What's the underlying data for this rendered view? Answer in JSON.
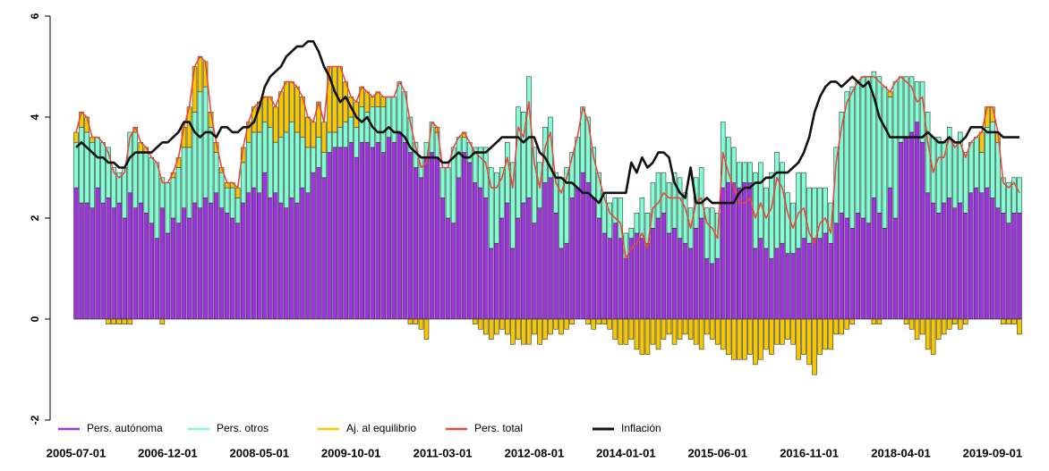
{
  "chart_data": {
    "type": "stacked_bar_line",
    "categories": [
      "2005-07-01",
      null,
      null,
      null,
      null,
      null,
      null,
      null,
      null,
      null,
      null,
      null,
      null,
      null,
      null,
      null,
      null,
      "2006-12-01",
      null,
      null,
      null,
      null,
      null,
      null,
      null,
      null,
      null,
      null,
      null,
      null,
      null,
      null,
      null,
      null,
      "2008-05-01",
      null,
      null,
      null,
      null,
      null,
      null,
      null,
      null,
      null,
      null,
      null,
      null,
      null,
      null,
      null,
      null,
      "2009-10-01",
      null,
      null,
      null,
      null,
      null,
      null,
      null,
      null,
      null,
      null,
      null,
      null,
      null,
      null,
      null,
      null,
      "2011-03-01",
      null,
      null,
      null,
      null,
      null,
      null,
      null,
      null,
      null,
      null,
      null,
      null,
      null,
      null,
      null,
      null,
      "2012-08-01",
      null,
      null,
      null,
      null,
      null,
      null,
      null,
      null,
      null,
      null,
      null,
      null,
      null,
      null,
      null,
      null,
      "2014-01-01",
      null,
      null,
      null,
      null,
      null,
      null,
      null,
      null,
      null,
      null,
      null,
      null,
      null,
      null,
      null,
      null,
      "2015-06-01",
      null,
      null,
      null,
      null,
      null,
      null,
      null,
      null,
      null,
      null,
      null,
      null,
      null,
      null,
      null,
      null,
      "2016-11-01",
      null,
      null,
      null,
      null,
      null,
      null,
      null,
      null,
      null,
      null,
      null,
      null,
      null,
      null,
      null,
      null,
      "2018-04-01",
      null,
      null,
      null,
      null,
      null,
      null,
      null,
      null,
      null,
      null,
      null,
      null,
      null,
      null,
      null,
      null,
      "2019-09-01",
      null,
      null,
      null,
      null,
      null
    ],
    "series": [
      {
        "name": "Pers. autónoma",
        "color": "#a032e6",
        "kind": "bar",
        "values": [
          2.6,
          2.3,
          2.3,
          2.2,
          2.6,
          2.3,
          2.4,
          2.2,
          2.3,
          2.0,
          2.5,
          2.2,
          2.3,
          2.1,
          1.9,
          1.6,
          2.2,
          1.7,
          2.0,
          1.9,
          2.2,
          2.0,
          2.3,
          2.2,
          2.4,
          2.3,
          2.5,
          2.2,
          2.1,
          2.0,
          1.9,
          2.3,
          2.5,
          2.6,
          2.5,
          2.9,
          2.4,
          2.5,
          2.3,
          2.2,
          2.4,
          2.3,
          2.6,
          2.5,
          2.9,
          3.0,
          2.8,
          3.3,
          3.4,
          3.4,
          3.4,
          3.5,
          3.2,
          3.5,
          3.5,
          3.4,
          3.5,
          3.3,
          3.6,
          3.5,
          3.7,
          3.5,
          3.3,
          3.0,
          2.8,
          3.2,
          3.3,
          3.2,
          2.4,
          2.0,
          1.9,
          2.8,
          3.3,
          3.1,
          2.7,
          2.6,
          2.4,
          1.4,
          1.5,
          2.0,
          2.3,
          1.4,
          2.0,
          2.3,
          2.4,
          1.9,
          2.2,
          2.7,
          2.8,
          2.1,
          1.4,
          1.5,
          2.4,
          2.6,
          2.9,
          2.7,
          2.4,
          2.0,
          1.7,
          1.6,
          1.9,
          1.6,
          1.2,
          1.6,
          1.7,
          1.6,
          1.5,
          1.8,
          2.0,
          2.1,
          1.7,
          1.8,
          1.6,
          1.5,
          1.4,
          1.8,
          2.0,
          1.2,
          1.1,
          1.2,
          2.6,
          2.7,
          2.7,
          2.6,
          2.7,
          2.7,
          1.4,
          1.6,
          1.4,
          1.2,
          1.4,
          1.5,
          1.3,
          1.3,
          1.4,
          1.6,
          1.5,
          1.6,
          1.6,
          1.7,
          1.5,
          1.9,
          2.1,
          2.0,
          1.8,
          2.1,
          2.0,
          1.9,
          2.4,
          2.1,
          1.8,
          2.6,
          2.0,
          3.5,
          3.6,
          3.7,
          3.9,
          3.5,
          2.5,
          2.3,
          2.1,
          2.3,
          2.4,
          2.2,
          2.3,
          2.1,
          2.5,
          2.6,
          2.5,
          2.6,
          2.4,
          2.2,
          2.1,
          1.9,
          2.1,
          2.1
        ]
      },
      {
        "name": "Pers. otros",
        "color": "#7fffd4",
        "kind": "bar",
        "values": [
          0.9,
          1.5,
          1.4,
          1.3,
          1.0,
          1.2,
          1.0,
          0.8,
          0.6,
          1.0,
          1.2,
          1.5,
          1.0,
          1.2,
          1.3,
          1.5,
          0.6,
          1.0,
          0.8,
          1.1,
          1.2,
          1.4,
          1.8,
          2.3,
          2.2,
          1.5,
          0.8,
          0.7,
          0.5,
          0.6,
          0.5,
          0.8,
          1.0,
          1.1,
          1.2,
          1.0,
          1.4,
          1.0,
          1.3,
          1.5,
          1.5,
          1.4,
          1.0,
          0.9,
          0.5,
          0.6,
          0.5,
          0.4,
          0.3,
          0.4,
          0.5,
          0.5,
          0.6,
          0.7,
          0.6,
          0.8,
          0.7,
          0.9,
          0.8,
          0.9,
          1.0,
          1.0,
          0.7,
          0.5,
          0.4,
          0.3,
          0.6,
          0.5,
          0.6,
          1.0,
          1.5,
          0.8,
          0.3,
          0.4,
          0.7,
          0.8,
          1.0,
          1.6,
          1.4,
          1.0,
          1.2,
          1.7,
          2.2,
          1.8,
          2.4,
          1.5,
          0.9,
          1.1,
          1.2,
          0.8,
          1.4,
          1.5,
          0.9,
          1.0,
          1.3,
          1.3,
          1.0,
          0.9,
          0.8,
          0.7,
          0.5,
          0.8,
          0.5,
          0.2,
          0.4,
          0.8,
          0.6,
          0.9,
          0.9,
          0.8,
          1.0,
          1.1,
          1.2,
          1.0,
          0.8,
          1.0,
          1.0,
          1.0,
          1.1,
          0.9,
          1.3,
          0.9,
          0.7,
          0.5,
          0.4,
          0.4,
          1.5,
          1.5,
          1.2,
          1.7,
          1.9,
          1.6,
          1.2,
          1.0,
          1.5,
          1.3,
          1.1,
          1.0,
          1.0,
          0.9,
          0.8,
          1.5,
          2.0,
          2.5,
          2.8,
          2.6,
          2.8,
          2.9,
          2.5,
          2.7,
          2.8,
          1.8,
          2.7,
          1.3,
          1.2,
          1.1,
          0.8,
          1.2,
          1.6,
          1.3,
          1.5,
          1.2,
          1.4,
          1.3,
          1.4,
          1.2,
          1.0,
          1.0,
          0.8,
          1.2,
          1.5,
          1.3,
          0.7,
          0.8,
          0.7,
          0.7
        ]
      },
      {
        "name": "Aj. al equilibrio",
        "color": "#f5c800",
        "kind": "bar",
        "values": [
          0.2,
          0.3,
          0.3,
          0.1,
          0,
          0,
          -0.1,
          -0.1,
          -0.1,
          -0.1,
          -0.1,
          0.1,
          0.2,
          0.1,
          0,
          0,
          -0.1,
          0,
          0.1,
          0.2,
          0.4,
          0.8,
          0.9,
          0.7,
          0.5,
          0.3,
          0.2,
          0.1,
          0.1,
          0.1,
          0.2,
          0.3,
          0.4,
          0.5,
          0.6,
          0.5,
          0.6,
          0.7,
          0.9,
          1.0,
          0.8,
          0.9,
          0.8,
          0.6,
          0.5,
          0.7,
          0.6,
          1.3,
          1.3,
          1.2,
          0.8,
          0.4,
          0.5,
          0.4,
          0.4,
          0.2,
          0.3,
          0.2,
          0,
          0,
          0,
          0,
          -0.1,
          -0.1,
          -0.2,
          -0.4,
          0,
          0.1,
          0,
          0,
          0,
          0,
          0.1,
          0,
          -0.1,
          -0.2,
          -0.3,
          -0.4,
          -0.3,
          -0.2,
          -0.3,
          -0.5,
          -0.4,
          -0.5,
          -0.5,
          -0.3,
          -0.5,
          -0.4,
          -0.3,
          -0.2,
          -0.3,
          -0.2,
          -0.1,
          0,
          0,
          -0.1,
          -0.2,
          -0.1,
          -0.1,
          -0.2,
          -0.4,
          -0.5,
          -0.5,
          -0.4,
          -0.6,
          -0.7,
          -0.7,
          -0.5,
          -0.6,
          -0.4,
          -0.3,
          -0.5,
          -0.4,
          -0.3,
          -0.4,
          -0.5,
          -0.6,
          -0.3,
          -0.4,
          -0.5,
          -0.6,
          -0.7,
          -0.8,
          -0.8,
          -0.8,
          -0.7,
          -0.9,
          -0.8,
          -0.6,
          -0.7,
          -0.5,
          -0.5,
          -0.4,
          -0.5,
          -0.8,
          -0.7,
          -0.9,
          -1.1,
          -0.7,
          -0.6,
          -0.6,
          -0.3,
          -0.3,
          -0.2,
          -0.1,
          0,
          0,
          0,
          -0.1,
          -0.1,
          0,
          0.1,
          0,
          0,
          -0.1,
          -0.2,
          -0.4,
          -0.3,
          -0.6,
          -0.7,
          -0.4,
          -0.3,
          -0.2,
          -0.1,
          -0.2,
          -0.1,
          0,
          0,
          0.4,
          0.4,
          0.3,
          0.2,
          -0.1,
          -0.1,
          -0.1,
          -0.3
        ]
      },
      {
        "name": "Pers. total",
        "color": "#e8483c",
        "kind": "line",
        "values": [
          3.7,
          4.1,
          4.0,
          3.6,
          3.6,
          3.5,
          3.3,
          2.9,
          2.8,
          2.9,
          3.6,
          3.8,
          3.5,
          3.4,
          3.2,
          3.1,
          2.7,
          2.7,
          2.9,
          3.2,
          3.8,
          4.2,
          5.0,
          5.2,
          5.1,
          4.1,
          3.5,
          3.0,
          2.7,
          2.7,
          2.6,
          3.4,
          3.9,
          4.2,
          4.3,
          4.4,
          4.4,
          4.2,
          4.5,
          4.7,
          4.7,
          4.6,
          4.4,
          4.0,
          3.9,
          4.3,
          3.9,
          5.0,
          5.0,
          5.0,
          4.7,
          4.4,
          4.3,
          4.6,
          4.5,
          4.4,
          4.5,
          4.4,
          4.4,
          4.4,
          4.7,
          4.5,
          3.9,
          3.4,
          3.0,
          3.1,
          3.9,
          3.8,
          3.0,
          3.0,
          3.4,
          3.6,
          3.7,
          3.5,
          3.3,
          3.2,
          3.1,
          2.6,
          2.6,
          2.8,
          3.2,
          2.6,
          3.8,
          3.6,
          4.3,
          3.1,
          2.6,
          3.4,
          3.7,
          2.7,
          2.5,
          2.8,
          3.2,
          3.6,
          4.2,
          3.9,
          3.2,
          2.8,
          2.4,
          2.1,
          2.0,
          1.9,
          1.2,
          1.4,
          1.5,
          1.7,
          1.4,
          2.2,
          2.3,
          2.5,
          2.4,
          2.4,
          2.4,
          2.2,
          1.8,
          2.3,
          2.4,
          1.9,
          1.8,
          1.6,
          3.3,
          2.9,
          2.6,
          2.3,
          2.3,
          2.4,
          2.0,
          2.3,
          2.0,
          2.2,
          2.8,
          2.6,
          2.1,
          1.8,
          2.1,
          2.2,
          1.7,
          1.5,
          1.9,
          2.0,
          1.7,
          3.1,
          3.8,
          4.3,
          4.5,
          4.7,
          4.8,
          4.8,
          4.8,
          4.7,
          4.6,
          4.5,
          4.7,
          4.8,
          4.7,
          4.6,
          4.3,
          4.4,
          3.5,
          2.9,
          3.2,
          3.2,
          3.6,
          3.4,
          3.5,
          3.2,
          3.5,
          3.6,
          3.7,
          4.2,
          4.2,
          3.7,
          2.7,
          2.6,
          2.7,
          2.5
        ]
      },
      {
        "name": "Inflación",
        "color": "#111111",
        "kind": "line",
        "values": [
          3.4,
          3.5,
          3.4,
          3.3,
          3.2,
          3.2,
          3.1,
          3.1,
          3.0,
          3.0,
          3.2,
          3.3,
          3.3,
          3.3,
          3.3,
          3.4,
          3.5,
          3.5,
          3.6,
          3.7,
          3.9,
          3.9,
          3.7,
          3.6,
          3.7,
          3.7,
          3.6,
          3.8,
          3.8,
          3.7,
          3.7,
          3.8,
          3.8,
          3.9,
          4.2,
          4.6,
          4.8,
          4.9,
          5.0,
          5.2,
          5.3,
          5.4,
          5.4,
          5.5,
          5.5,
          5.3,
          5.0,
          4.8,
          4.5,
          4.3,
          4.4,
          4.2,
          4.0,
          3.9,
          4.0,
          3.8,
          3.7,
          3.7,
          3.8,
          3.7,
          3.7,
          3.6,
          3.4,
          3.3,
          3.2,
          3.2,
          3.2,
          3.2,
          3.1,
          3.1,
          3.2,
          3.3,
          3.2,
          3.2,
          3.3,
          3.3,
          3.3,
          3.4,
          3.5,
          3.6,
          3.6,
          3.6,
          3.6,
          3.5,
          3.6,
          3.6,
          3.3,
          3.2,
          3.0,
          2.8,
          2.8,
          2.7,
          2.7,
          2.6,
          2.5,
          2.5,
          2.4,
          2.3,
          2.5,
          2.5,
          2.5,
          2.5,
          2.5,
          3.1,
          2.9,
          3.2,
          3.0,
          3.1,
          3.3,
          3.3,
          3.2,
          2.7,
          2.5,
          2.4,
          3.0,
          2.3,
          2.3,
          2.4,
          2.3,
          2.3,
          2.3,
          2.3,
          2.3,
          2.5,
          2.6,
          2.6,
          2.7,
          2.7,
          2.8,
          2.8,
          2.9,
          2.9,
          2.9,
          3.0,
          3.1,
          3.3,
          3.6,
          4.1,
          4.4,
          4.6,
          4.7,
          4.7,
          4.6,
          4.7,
          4.8,
          4.7,
          4.6,
          4.7,
          4.4,
          4.0,
          3.8,
          3.6,
          3.6,
          3.6,
          3.6,
          3.6,
          3.6,
          3.6,
          3.7,
          3.6,
          3.5,
          3.5,
          3.6,
          3.5,
          3.5,
          3.6,
          3.8,
          3.8,
          3.8,
          3.7,
          3.7,
          3.7,
          3.6,
          3.6,
          3.6,
          3.6
        ]
      }
    ],
    "ylim": [
      -2,
      6
    ],
    "yticks": [
      -2,
      0,
      2,
      4,
      6
    ],
    "grid": false,
    "legend_position": "bottomleft"
  }
}
